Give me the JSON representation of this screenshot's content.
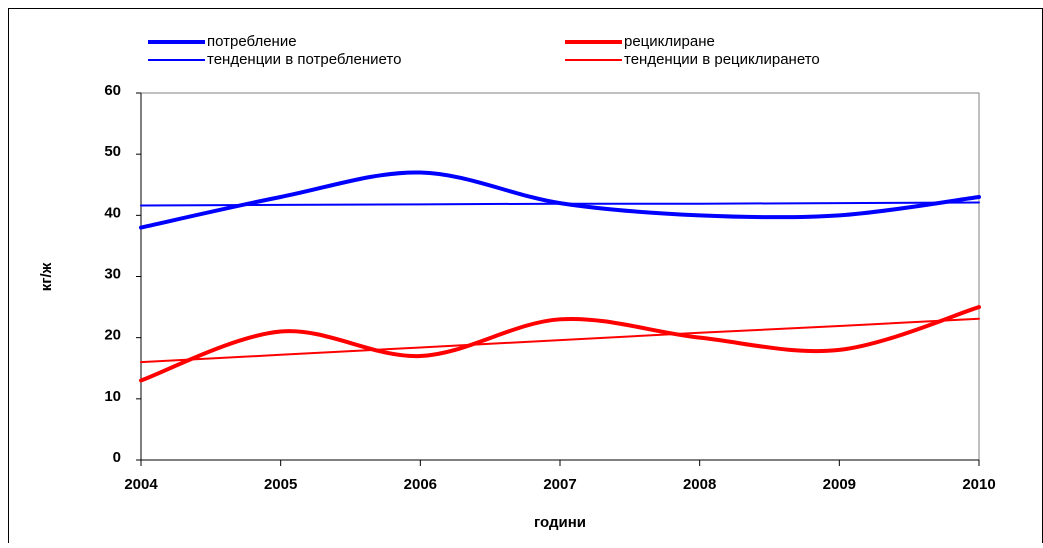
{
  "chart_data": {
    "type": "line",
    "x": [
      2004,
      2005,
      2006,
      2007,
      2008,
      2009,
      2010
    ],
    "series": [
      {
        "name": "потребление",
        "color": "#0000ff",
        "width": 4,
        "smooth": true,
        "values": [
          38,
          43,
          47,
          42,
          40,
          40,
          43
        ]
      },
      {
        "name": "рециклиране",
        "color": "#ff0000",
        "width": 4,
        "smooth": true,
        "values": [
          13,
          21,
          17,
          23,
          20,
          18,
          25
        ]
      },
      {
        "name": "тенденции в потреблението",
        "color": "#0000ff",
        "width": 2,
        "smooth": false,
        "values": [
          41.6,
          41.7,
          41.8,
          41.9,
          41.9,
          42.0,
          42.1
        ]
      },
      {
        "name": "тенденции в рециклирането",
        "color": "#ff0000",
        "width": 2,
        "smooth": false,
        "values": [
          16.0,
          17.2,
          18.4,
          19.6,
          20.8,
          21.9,
          23.1
        ]
      }
    ],
    "xlabel": "години",
    "ylabel": "кг/ж",
    "xlim": [
      2004,
      2010
    ],
    "xticks": [
      2004,
      2005,
      2006,
      2007,
      2008,
      2009,
      2010
    ],
    "ylim": [
      0,
      60
    ],
    "yticks": [
      0,
      10,
      20,
      30,
      40,
      50,
      60
    ],
    "grid": false,
    "legend": "top"
  }
}
